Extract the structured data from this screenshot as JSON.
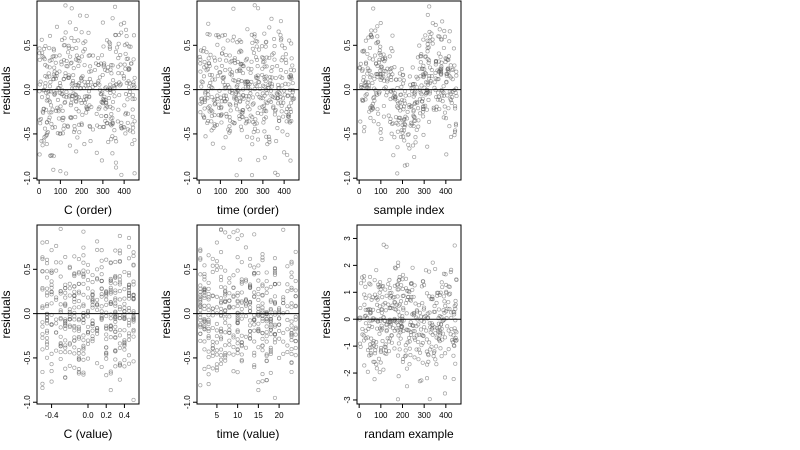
{
  "chart_data": [
    {
      "type": "scatter",
      "xlabel": "C (order)",
      "ylabel": "residuals",
      "xlim": [
        -10,
        470
      ],
      "ylim": [
        -1.02,
        1.0
      ],
      "xticks": [
        0,
        100,
        200,
        300,
        400
      ],
      "yticks": [
        -1.0,
        -0.5,
        0.0,
        0.5
      ],
      "ytick_labels": [
        "-1.0",
        "-0.5",
        "0.0",
        "0.5"
      ],
      "hline": 0,
      "n_points": 450,
      "x_range": [
        1,
        450
      ],
      "y_spread": 0.36,
      "pattern": "noise"
    },
    {
      "type": "scatter",
      "xlabel": "time (order)",
      "ylabel": "residuals",
      "xlim": [
        -10,
        470
      ],
      "ylim": [
        -1.02,
        1.0
      ],
      "xticks": [
        0,
        100,
        200,
        300,
        400
      ],
      "yticks": [
        -1.0,
        -0.5,
        0.0,
        0.5
      ],
      "ytick_labels": [
        "-1.0",
        "-0.5",
        "0.0",
        "0.5"
      ],
      "hline": 0,
      "n_points": 450,
      "x_range": [
        1,
        450
      ],
      "y_spread": 0.36,
      "pattern": "noise"
    },
    {
      "type": "scatter",
      "xlabel": "sample index",
      "ylabel": "residuals",
      "xlim": [
        -10,
        470
      ],
      "ylim": [
        -1.02,
        1.0
      ],
      "xticks": [
        0,
        100,
        200,
        300,
        400
      ],
      "yticks": [
        -1.0,
        -0.5,
        0.0,
        0.5
      ],
      "ytick_labels": [
        "-1.0",
        "-0.5",
        "0.0",
        "0.5"
      ],
      "hline": 0,
      "n_points": 450,
      "x_range": [
        1,
        450
      ],
      "y_spread": 0.34,
      "pattern": "wave"
    },
    {
      "type": "scatter",
      "xlabel": "C (value)",
      "ylabel": "residuals",
      "xlim": [
        -0.56,
        0.56
      ],
      "ylim": [
        -1.02,
        1.0
      ],
      "xticks": [
        -0.4,
        0.0,
        0.2,
        0.4
      ],
      "xtick_labels": [
        "-0.4",
        "0.0",
        "0.2",
        "0.4"
      ],
      "yticks": [
        -1.0,
        -0.5,
        0.0,
        0.5
      ],
      "ytick_labels": [
        "-1.0",
        "-0.5",
        "0.0",
        "0.5"
      ],
      "hline": 0,
      "n_points": 450,
      "x_values": [
        -0.5,
        -0.45,
        -0.4,
        -0.35,
        -0.3,
        -0.25,
        -0.2,
        -0.15,
        -0.1,
        -0.05,
        0.0,
        0.05,
        0.1,
        0.15,
        0.2,
        0.25,
        0.3,
        0.35,
        0.4,
        0.45,
        0.5
      ],
      "y_spread": 0.36,
      "pattern": "noise"
    },
    {
      "type": "scatter",
      "xlabel": "time (value)",
      "ylabel": "residuals",
      "xlim": [
        0.2,
        24.8
      ],
      "ylim": [
        -1.02,
        1.0
      ],
      "xticks": [
        5,
        10,
        15,
        20
      ],
      "yticks": [
        -1.0,
        -0.5,
        0.0,
        0.5
      ],
      "ytick_labels": [
        "-1.0",
        "-0.5",
        "0.0",
        "0.5"
      ],
      "hline": 0,
      "n_points": 450,
      "x_values": [
        1,
        2,
        3,
        4,
        5,
        6,
        7,
        8,
        9,
        10,
        11,
        12,
        13,
        14,
        15,
        16,
        17,
        18,
        19,
        20,
        21,
        22,
        23,
        24
      ],
      "y_spread": 0.36,
      "pattern": "noise"
    },
    {
      "type": "scatter",
      "xlabel": "randam example",
      "ylabel": "residuals",
      "xlim": [
        -10,
        470
      ],
      "ylim": [
        -3.15,
        3.5
      ],
      "xticks": [
        0,
        100,
        200,
        300,
        400
      ],
      "yticks": [
        -3,
        -2,
        -1,
        0,
        1,
        2,
        3
      ],
      "ytick_labels": [
        "-3",
        "-2",
        "-1",
        "0",
        "1",
        "2",
        "3"
      ],
      "hline": 0,
      "n_points": 450,
      "x_range": [
        1,
        450
      ],
      "y_spread": 1.0,
      "pattern": "noise"
    }
  ],
  "point_color": "#555555"
}
